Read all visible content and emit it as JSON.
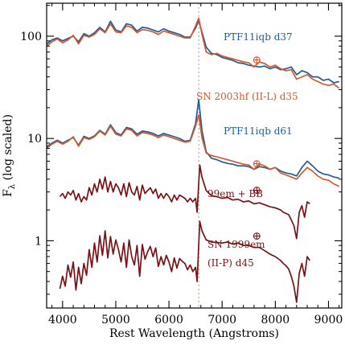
{
  "chart_data": {
    "type": "line",
    "xlabel": "Rest Wavelength (Angstroms)",
    "ylabel": "F",
    "ylabel_sub": "λ",
    "ylabel_suffix": " (log scaled)",
    "xlim": [
      3700,
      9250
    ],
    "ylim": [
      0.22,
      210
    ],
    "log_y": true,
    "x_ticks": [
      4000,
      5000,
      6000,
      7000,
      8000,
      9000
    ],
    "y_ticks": [
      1,
      10,
      100
    ],
    "y_tick_labels": [
      "1",
      "10",
      "100"
    ],
    "halpha_marker_x": 6563,
    "colors": {
      "blue": "#1f5c99",
      "orange": "#d9572a",
      "dark_red": "#7a1215",
      "dotted": "#f0a08a"
    },
    "series": [
      {
        "name": "PTF11iqb d37",
        "color": "#1f5c99",
        "x": [
          3700,
          3800,
          3900,
          4000,
          4100,
          4200,
          4300,
          4400,
          4500,
          4600,
          4700,
          4800,
          4900,
          5000,
          5100,
          5200,
          5300,
          5400,
          5500,
          5600,
          5700,
          5800,
          5900,
          6000,
          6100,
          6200,
          6300,
          6400,
          6500,
          6560,
          6620,
          6700,
          6800,
          6900,
          7000,
          7100,
          7200,
          7300,
          7400,
          7500,
          7600,
          7700,
          7800,
          7900,
          8000,
          8100,
          8200,
          8300,
          8400,
          8500,
          8600,
          8700,
          8800,
          8900,
          9000,
          9100,
          9200
        ],
        "y": [
          84,
          92,
          96,
          90,
          95,
          100,
          88,
          106,
          100,
          108,
          122,
          110,
          140,
          115,
          110,
          132,
          128,
          112,
          122,
          120,
          115,
          110,
          118,
          112,
          108,
          104,
          98,
          98,
          120,
          142,
          110,
          78,
          68,
          66,
          62,
          60,
          58,
          55,
          54,
          52,
          51,
          50,
          51,
          48,
          50,
          47,
          48,
          50,
          42,
          46,
          44,
          40,
          40,
          37,
          38,
          35,
          36
        ]
      },
      {
        "name": "SN 2003hf (II-L) d35",
        "color": "#d9572a",
        "x": [
          3700,
          3800,
          3900,
          4000,
          4100,
          4200,
          4300,
          4400,
          4500,
          4600,
          4700,
          4800,
          4900,
          5000,
          5100,
          5200,
          5300,
          5400,
          5500,
          5600,
          5700,
          5800,
          5900,
          6000,
          6100,
          6200,
          6300,
          6400,
          6500,
          6560,
          6620,
          6700,
          6800,
          6900,
          7000,
          7100,
          7200,
          7300,
          7400,
          7500,
          7600,
          7700,
          7800,
          7900,
          8000,
          8100,
          8200,
          8300,
          8400,
          8500,
          8600,
          8700,
          8800,
          8900,
          9000,
          9100,
          9200
        ],
        "y": [
          80,
          88,
          94,
          86,
          92,
          102,
          84,
          102,
          98,
          104,
          118,
          108,
          132,
          110,
          108,
          126,
          122,
          108,
          116,
          114,
          110,
          104,
          112,
          108,
          104,
          100,
          96,
          96,
          126,
          150,
          105,
          70,
          66,
          68,
          64,
          62,
          60,
          58,
          56,
          55,
          50,
          56,
          54,
          50,
          52,
          48,
          46,
          47,
          38,
          40,
          42,
          38,
          36,
          34,
          33,
          34,
          31
        ]
      },
      {
        "name": "PTF11iqb d61",
        "color": "#1f5c99",
        "x": [
          3700,
          3800,
          3900,
          4000,
          4100,
          4200,
          4300,
          4400,
          4500,
          4600,
          4700,
          4800,
          4900,
          5000,
          5100,
          5200,
          5300,
          5400,
          5500,
          5600,
          5700,
          5800,
          5900,
          6000,
          6100,
          6200,
          6300,
          6400,
          6500,
          6560,
          6620,
          6700,
          6800,
          6900,
          7000,
          7100,
          7200,
          7300,
          7400,
          7500,
          7600,
          7700,
          7800,
          7900,
          8000,
          8100,
          8200,
          8300,
          8400,
          8500,
          8600,
          8700,
          8800,
          8900,
          9000,
          9100,
          9200
        ],
        "y": [
          8.3,
          9.0,
          9.6,
          9.0,
          9.6,
          10.2,
          8.6,
          10.5,
          10.0,
          10.6,
          12.0,
          11.0,
          13.6,
          11.4,
          10.8,
          12.8,
          12.4,
          11.0,
          11.8,
          11.6,
          11.2,
          10.6,
          11.2,
          10.8,
          10.4,
          10.0,
          9.4,
          9.6,
          14.0,
          24.0,
          12.0,
          7.4,
          6.4,
          6.2,
          5.9,
          5.7,
          5.6,
          5.4,
          5.4,
          5.3,
          5.0,
          5.3,
          5.2,
          5.0,
          5.2,
          4.8,
          4.6,
          4.5,
          4.3,
          5.2,
          6.0,
          5.4,
          4.8,
          4.5,
          4.4,
          4.2,
          4.1
        ]
      },
      {
        "name": "SN 2003hf (II-L) d35",
        "color": "#d9572a",
        "x": [
          3700,
          3800,
          3900,
          4000,
          4100,
          4200,
          4300,
          4400,
          4500,
          4600,
          4700,
          4800,
          4900,
          5000,
          5100,
          5200,
          5300,
          5400,
          5500,
          5600,
          5700,
          5800,
          5900,
          6000,
          6100,
          6200,
          6300,
          6400,
          6500,
          6560,
          6620,
          6700,
          6800,
          6900,
          7000,
          7100,
          7200,
          7300,
          7400,
          7500,
          7600,
          7700,
          7800,
          7900,
          8000,
          8100,
          8200,
          8300,
          8400,
          8500,
          8600,
          8700,
          8800,
          8900,
          9000,
          9100,
          9200
        ],
        "y": [
          8.0,
          8.8,
          9.4,
          8.8,
          9.4,
          10.4,
          8.4,
          10.2,
          9.8,
          10.4,
          11.8,
          10.8,
          13.2,
          11.0,
          10.6,
          12.4,
          12.0,
          10.6,
          11.4,
          11.2,
          10.8,
          10.2,
          10.8,
          10.4,
          10.0,
          9.6,
          9.2,
          9.4,
          13.2,
          17.0,
          10.2,
          7.2,
          6.8,
          6.6,
          6.4,
          6.2,
          6.0,
          5.8,
          5.6,
          5.5,
          5.0,
          5.6,
          5.4,
          5.0,
          5.2,
          4.6,
          4.4,
          4.2,
          4.0,
          4.6,
          5.2,
          4.8,
          4.3,
          4.0,
          3.9,
          3.6,
          3.4
        ]
      },
      {
        "name": "99em + BB",
        "color": "#7a1215",
        "x": [
          3950,
          4000,
          4050,
          4100,
          4150,
          4200,
          4250,
          4300,
          4350,
          4400,
          4450,
          4500,
          4550,
          4600,
          4650,
          4700,
          4750,
          4800,
          4850,
          4900,
          4950,
          5000,
          5050,
          5100,
          5150,
          5200,
          5250,
          5300,
          5350,
          5400,
          5450,
          5500,
          5550,
          5600,
          5650,
          5700,
          5750,
          5800,
          5850,
          5900,
          5950,
          6000,
          6050,
          6100,
          6150,
          6200,
          6250,
          6300,
          6350,
          6400,
          6450,
          6500,
          6530,
          6580,
          6620,
          6700,
          6800,
          6900,
          7000,
          7100,
          7200,
          7300,
          7400,
          7500,
          7600,
          7700,
          7800,
          7900,
          8000,
          8050,
          8100,
          8150,
          8200,
          8250,
          8300,
          8350,
          8400,
          8450,
          8500,
          8550,
          8600,
          8650
        ],
        "y": [
          2.7,
          2.9,
          2.6,
          3.0,
          2.8,
          3.1,
          2.5,
          2.9,
          2.4,
          2.7,
          2.5,
          3.3,
          2.8,
          3.6,
          3.0,
          4.0,
          3.2,
          4.2,
          3.0,
          3.8,
          3.0,
          3.6,
          3.3,
          2.8,
          3.6,
          2.7,
          3.7,
          3.0,
          2.8,
          3.4,
          2.5,
          3.5,
          2.9,
          3.1,
          3.3,
          2.9,
          3.2,
          2.6,
          2.9,
          2.6,
          2.9,
          2.7,
          2.4,
          2.8,
          2.5,
          2.8,
          2.7,
          2.6,
          2.4,
          2.6,
          2.4,
          2.6,
          1.9,
          5.5,
          4.2,
          3.1,
          2.75,
          2.7,
          2.6,
          2.65,
          2.5,
          2.55,
          2.4,
          2.45,
          2.3,
          2.35,
          2.25,
          2.15,
          2.1,
          2.05,
          2.0,
          1.9,
          1.85,
          1.8,
          1.6,
          1.4,
          1.05,
          1.9,
          2.2,
          1.7,
          2.4,
          2.3
        ]
      },
      {
        "name": "SN 1999em (II-P) d45",
        "color": "#7a1215",
        "x": [
          3950,
          4000,
          4050,
          4100,
          4150,
          4200,
          4250,
          4300,
          4350,
          4400,
          4450,
          4500,
          4550,
          4600,
          4650,
          4700,
          4750,
          4800,
          4850,
          4900,
          4950,
          5000,
          5050,
          5100,
          5150,
          5200,
          5250,
          5300,
          5350,
          5400,
          5450,
          5500,
          5550,
          5600,
          5650,
          5700,
          5750,
          5800,
          5850,
          5900,
          5950,
          6000,
          6050,
          6100,
          6150,
          6200,
          6250,
          6300,
          6350,
          6400,
          6450,
          6500,
          6530,
          6580,
          6620,
          6700,
          6800,
          6900,
          7000,
          7100,
          7200,
          7300,
          7400,
          7500,
          7600,
          7700,
          7800,
          7900,
          8000,
          8050,
          8100,
          8150,
          8200,
          8250,
          8300,
          8350,
          8400,
          8450,
          8500,
          8550,
          8600,
          8650
        ],
        "y": [
          0.34,
          0.45,
          0.36,
          0.58,
          0.44,
          0.62,
          0.33,
          0.55,
          0.38,
          0.6,
          0.46,
          0.82,
          0.55,
          0.95,
          0.62,
          1.12,
          0.72,
          1.25,
          0.68,
          1.1,
          0.74,
          1.02,
          0.82,
          0.62,
          0.95,
          0.55,
          1.02,
          0.7,
          0.58,
          0.9,
          0.45,
          0.92,
          0.66,
          0.78,
          0.88,
          0.7,
          0.85,
          0.56,
          0.7,
          0.58,
          0.72,
          0.62,
          0.5,
          0.68,
          0.54,
          0.67,
          0.63,
          0.6,
          0.52,
          0.58,
          0.5,
          0.55,
          0.4,
          1.55,
          1.25,
          1.02,
          0.97,
          0.96,
          0.95,
          0.97,
          0.93,
          0.95,
          0.9,
          0.9,
          0.86,
          0.86,
          0.8,
          0.74,
          0.7,
          0.67,
          0.64,
          0.6,
          0.57,
          0.53,
          0.45,
          0.36,
          0.25,
          0.48,
          0.6,
          0.45,
          0.7,
          0.64
        ]
      }
    ],
    "annotations": [
      {
        "text": "PTF11iqb d37",
        "color": "#1f5c99"
      },
      {
        "text": "SN 2003hf (II-L) d35",
        "color": "#d9572a"
      },
      {
        "text": "PTF11iqb d61",
        "color": "#1f5c99"
      },
      {
        "text": "99em + BB",
        "color": "#7a1215"
      },
      {
        "text": "SN 1999em",
        "color": "#7a1215"
      },
      {
        "text": "(II-P) d45",
        "color": "#7a1215"
      }
    ],
    "telluric_markers": [
      {
        "symbol": "⊕",
        "x": 7650,
        "y": 58,
        "color": "#d9572a"
      },
      {
        "symbol": "⊕",
        "x": 7650,
        "y": 5.6,
        "color": "#d9572a"
      },
      {
        "symbol": "⊕",
        "x": 7650,
        "y": 3.1,
        "color": "#7a1215"
      },
      {
        "symbol": "⊕",
        "x": 7650,
        "y": 1.1,
        "color": "#7a1215"
      }
    ]
  }
}
